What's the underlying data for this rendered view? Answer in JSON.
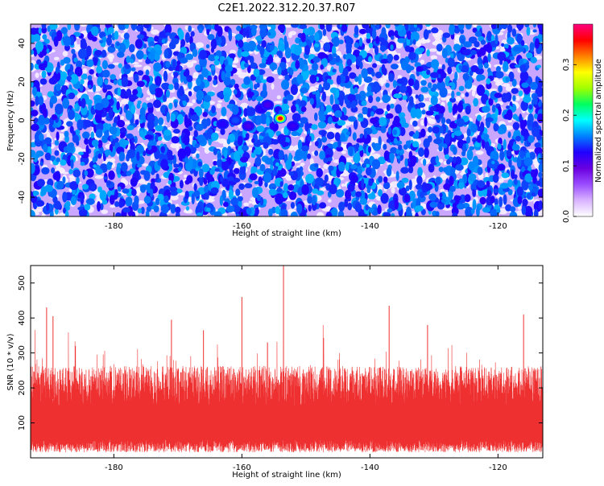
{
  "title": "C2E1.2022.312.20.37.R07",
  "chart_data": [
    {
      "type": "heatmap",
      "xlabel": "Height of straight line (km)",
      "ylabel": "Frequency (Hz)",
      "xlim": [
        -193,
        -113
      ],
      "ylim": [
        -50,
        50
      ],
      "x_ticks": [
        -180,
        -160,
        -140,
        -120
      ],
      "y_ticks": [
        -40,
        -20,
        0,
        20,
        40
      ],
      "colorbar": {
        "label": "Normalized spectral amplitude",
        "range": [
          0.0,
          0.38
        ],
        "ticks": [
          0.0,
          0.1,
          0.2,
          0.3
        ],
        "colormap": [
          "#ffffff",
          "#d9b3ff",
          "#9a4dff",
          "#6a00e0",
          "#2000ff",
          "#0080ff",
          "#00ffff",
          "#00ff60",
          "#a0ff00",
          "#ffff00",
          "#ff8000",
          "#ff0000",
          "#ff0080"
        ]
      },
      "background_level": 0.05,
      "peaks": [
        {
          "x": -154,
          "y": 1,
          "value": 0.38
        },
        {
          "x": -161,
          "y": 0,
          "value": 0.15
        },
        {
          "x": -163,
          "y": -2,
          "value": 0.12
        },
        {
          "x": -157,
          "y": 6,
          "value": 0.12
        },
        {
          "x": -152,
          "y": -3,
          "value": 0.11
        },
        {
          "x": -159,
          "y": -3,
          "value": 0.1
        },
        {
          "x": -156,
          "y": 8,
          "value": 0.1
        }
      ]
    },
    {
      "type": "line",
      "xlabel": "Height of straight line (km)",
      "ylabel": "SNR (10 * v/v)",
      "xlim": [
        -193,
        -113
      ],
      "ylim": [
        0,
        550
      ],
      "x_ticks": [
        -180,
        -160,
        -140,
        -120
      ],
      "y_ticks": [
        100,
        200,
        300,
        400,
        500
      ],
      "series_color": "#ef3030",
      "noise_band": [
        40,
        210
      ],
      "peaks": [
        {
          "x": -153.5,
          "y": 550
        },
        {
          "x": -160,
          "y": 460
        },
        {
          "x": -190.5,
          "y": 430
        },
        {
          "x": -137,
          "y": 435
        },
        {
          "x": -189.5,
          "y": 405
        },
        {
          "x": -171,
          "y": 395
        },
        {
          "x": -116,
          "y": 410
        },
        {
          "x": -166,
          "y": 365
        },
        {
          "x": -131,
          "y": 380
        },
        {
          "x": -156,
          "y": 330
        },
        {
          "x": -186,
          "y": 320
        }
      ]
    }
  ]
}
